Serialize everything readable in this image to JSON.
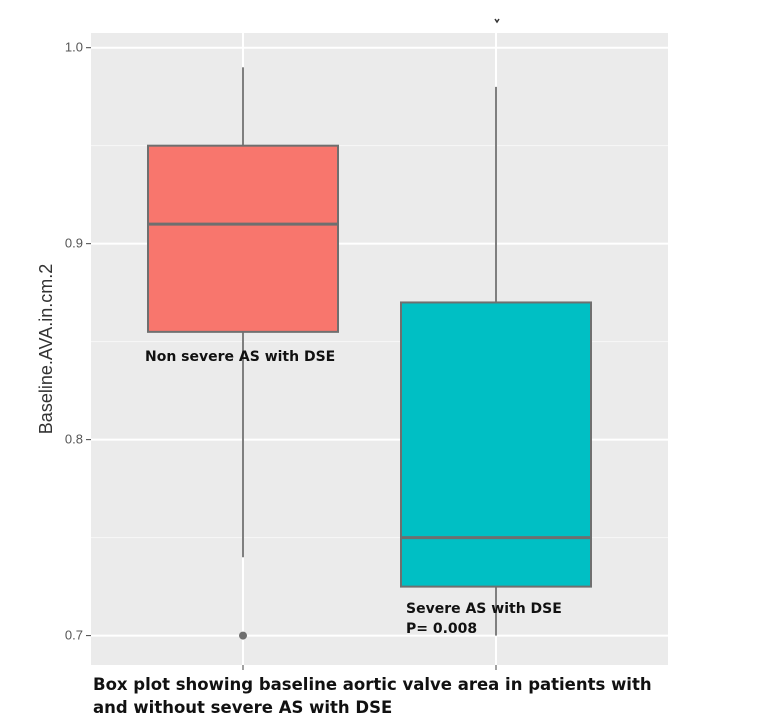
{
  "chart_data": {
    "type": "box",
    "ylabel": "Baseline.AVA.in.cm.2",
    "xlabel": "",
    "ylim": [
      0.685,
      1.0075
    ],
    "yticks": [
      0.7,
      0.8,
      0.9,
      1.0
    ],
    "ytick_labels": [
      "0.7",
      "0.8",
      "0.9",
      "1.0"
    ],
    "grid": true,
    "groups": [
      {
        "name": "Non severe AS with DSE",
        "color": "#F8766D",
        "whisker_low": 0.74,
        "q1": 0.855,
        "median": 0.91,
        "q3": 0.95,
        "whisker_high": 0.99,
        "outliers": [
          0.7
        ]
      },
      {
        "name": "Severe AS with DSE",
        "color": "#00BFC4",
        "whisker_low": 0.7,
        "q1": 0.725,
        "median": 0.75,
        "q3": 0.87,
        "whisker_high": 0.98,
        "outliers": []
      }
    ],
    "annotations": {
      "group1_label": "Non severe AS with DSE",
      "group2_label": "Severe AS with DSE",
      "p_value": "P= 0.008"
    }
  },
  "caption": "Box plot showing baseline aortic valve area in patients with and without severe AS with DSE"
}
